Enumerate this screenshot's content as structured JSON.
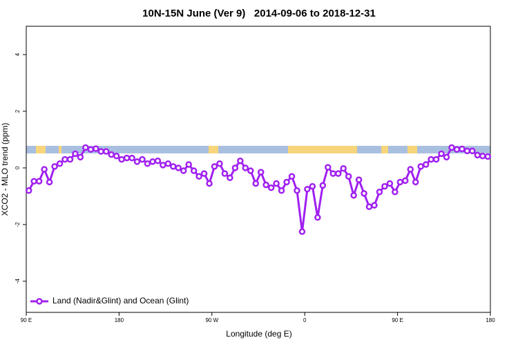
{
  "chart_data": {
    "type": "line",
    "title": "10N-15N June (Ver 9)   2014-09-06 to 2018-12-31",
    "xlabel": "Longitude (deg E)",
    "ylabel": "XCO2 - MLO trend (ppm)",
    "xlim": [
      90,
      540
    ],
    "ylim": [
      -5.1,
      5
    ],
    "xticks": [
      {
        "value": 90,
        "label": "90 E"
      },
      180,
      {
        "value": 270,
        "label": "90 W"
      },
      {
        "value": 360,
        "label": "0"
      },
      {
        "value": 450,
        "label": "90 E"
      },
      {
        "value": 540,
        "label": "180"
      }
    ],
    "yticks": [
      -4,
      -2,
      0,
      2,
      4
    ],
    "legend": "bottom-left",
    "x": [
      92.5,
      97.5,
      102.5,
      107.5,
      112.5,
      117.5,
      122.5,
      127.5,
      132.5,
      137.5,
      142.5,
      147.5,
      152.5,
      157.5,
      162.5,
      167.5,
      172.5,
      177.5,
      182.5,
      187.5,
      192.5,
      197.5,
      202.5,
      207.5,
      212.5,
      217.5,
      222.5,
      227.5,
      232.5,
      237.5,
      242.5,
      247.5,
      252.5,
      257.5,
      262.5,
      267.5,
      272.5,
      277.5,
      282.5,
      287.5,
      292.5,
      297.5,
      302.5,
      307.5,
      312.5,
      317.5,
      322.5,
      327.5,
      332.5,
      337.5,
      342.5,
      347.5,
      352.5,
      357.5,
      362.5,
      367.5,
      372.5,
      377.5,
      382.5,
      387.5,
      392.5,
      397.5,
      402.5,
      407.5,
      412.5,
      417.5,
      422.5,
      427.5,
      432.5,
      437.5,
      442.5,
      447.5,
      452.5,
      457.5,
      462.5,
      467.5,
      472.5,
      477.5,
      482.5,
      487.5,
      492.5,
      497.5,
      502.5,
      507.5,
      512.5,
      517.5,
      522.5,
      527.5,
      532.5,
      537.5
    ],
    "series": [
      {
        "name": "Land (Nadir&Glint) and Ocean (Glint)",
        "color": "#a020f0",
        "values": [
          -0.8,
          -0.47,
          -0.47,
          -0.05,
          -0.5,
          0.05,
          0.15,
          0.3,
          0.3,
          0.5,
          0.38,
          0.72,
          0.65,
          0.68,
          0.58,
          0.58,
          0.47,
          0.42,
          0.3,
          0.35,
          0.35,
          0.22,
          0.3,
          0.15,
          0.22,
          0.25,
          0.1,
          0.15,
          0.05,
          0.0,
          -0.1,
          0.12,
          -0.1,
          -0.3,
          -0.2,
          -0.55,
          0.05,
          0.15,
          -0.2,
          -0.35,
          0.0,
          0.25,
          0.0,
          -0.1,
          -0.55,
          -0.15,
          -0.6,
          -0.7,
          -0.55,
          -0.8,
          -0.5,
          -0.3,
          -0.8,
          -2.25,
          -0.75,
          -0.65,
          -1.75,
          -0.62,
          0.02,
          -0.2,
          -0.2,
          -0.02,
          -0.3,
          -0.97,
          -0.42,
          -0.9,
          -1.37,
          -1.32,
          -0.85,
          -0.65,
          -0.55,
          -0.85,
          -0.5,
          -0.45,
          -0.05,
          -0.5,
          0.05,
          0.12,
          0.3,
          0.3,
          0.5,
          0.38,
          0.72,
          0.65,
          0.67,
          0.6,
          0.6,
          0.45,
          0.42,
          0.4
        ]
      }
    ]
  }
}
